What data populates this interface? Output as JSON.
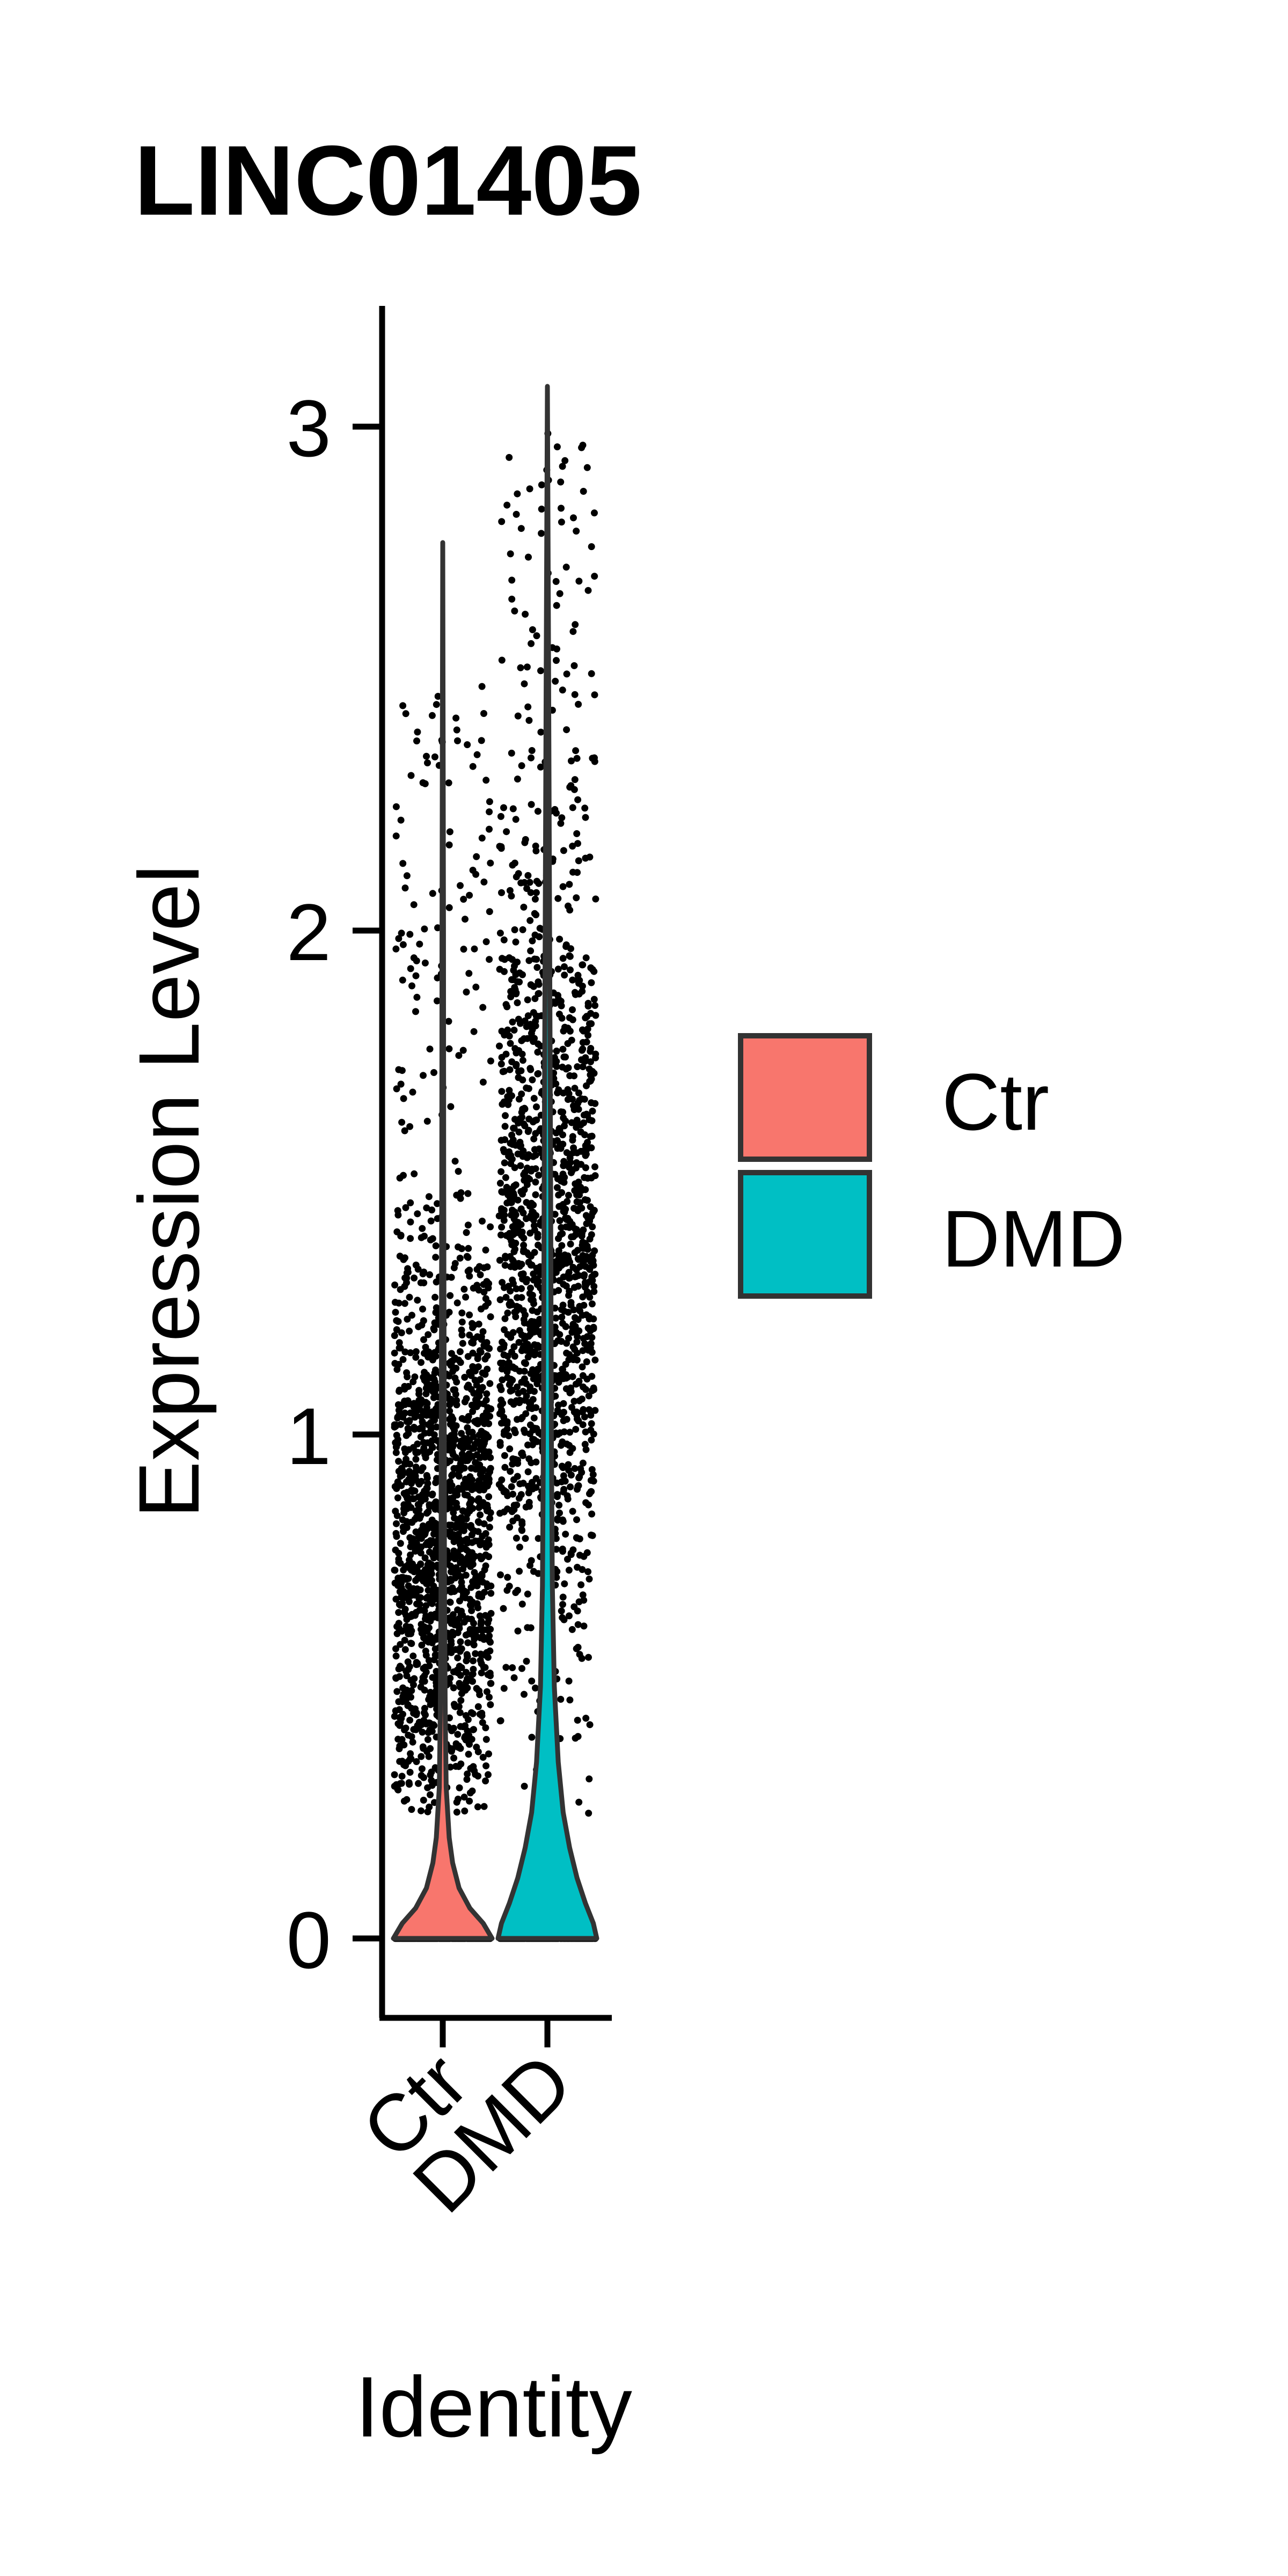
{
  "chart_data": {
    "type": "violin",
    "title": "LINC01405",
    "xlabel": "Identity",
    "ylabel": "Expression Level",
    "categories": [
      "Ctr",
      "DMD"
    ],
    "ylim": [
      -0.15,
      3.22
    ],
    "yticks": [
      0,
      1,
      2,
      3
    ],
    "ytick_labels": [
      "0",
      "1",
      "2",
      "3"
    ],
    "xtick_labels": [
      "Ctr",
      "DMD"
    ],
    "grid": false,
    "legend_position": "right",
    "series": [
      {
        "name": "Ctr",
        "color": "#F8766D",
        "max": 2.77,
        "approx_points": 1900,
        "violin_density": [
          [
            0.0,
            1.0
          ],
          [
            0.03,
            0.82
          ],
          [
            0.06,
            0.55
          ],
          [
            0.1,
            0.33
          ],
          [
            0.15,
            0.2
          ],
          [
            0.2,
            0.13
          ],
          [
            0.3,
            0.07
          ],
          [
            0.45,
            0.05
          ],
          [
            0.7,
            0.035
          ],
          [
            1.0,
            0.03
          ],
          [
            1.5,
            0.02
          ],
          [
            2.0,
            0.015
          ],
          [
            2.77,
            0.0
          ]
        ]
      },
      {
        "name": "DMD",
        "color": "#00BFC4",
        "max": 3.08,
        "approx_points": 1700,
        "violin_density": [
          [
            0.0,
            1.0
          ],
          [
            0.03,
            0.93
          ],
          [
            0.07,
            0.77
          ],
          [
            0.12,
            0.6
          ],
          [
            0.18,
            0.45
          ],
          [
            0.25,
            0.32
          ],
          [
            0.35,
            0.22
          ],
          [
            0.5,
            0.14
          ],
          [
            0.7,
            0.1
          ],
          [
            1.0,
            0.08
          ],
          [
            1.5,
            0.065
          ],
          [
            2.0,
            0.045
          ],
          [
            2.5,
            0.025
          ],
          [
            3.08,
            0.0
          ]
        ]
      }
    ]
  },
  "legend": {
    "items": [
      {
        "label": "Ctr",
        "color": "#F8766D"
      },
      {
        "label": "DMD",
        "color": "#00BFC4"
      }
    ]
  }
}
